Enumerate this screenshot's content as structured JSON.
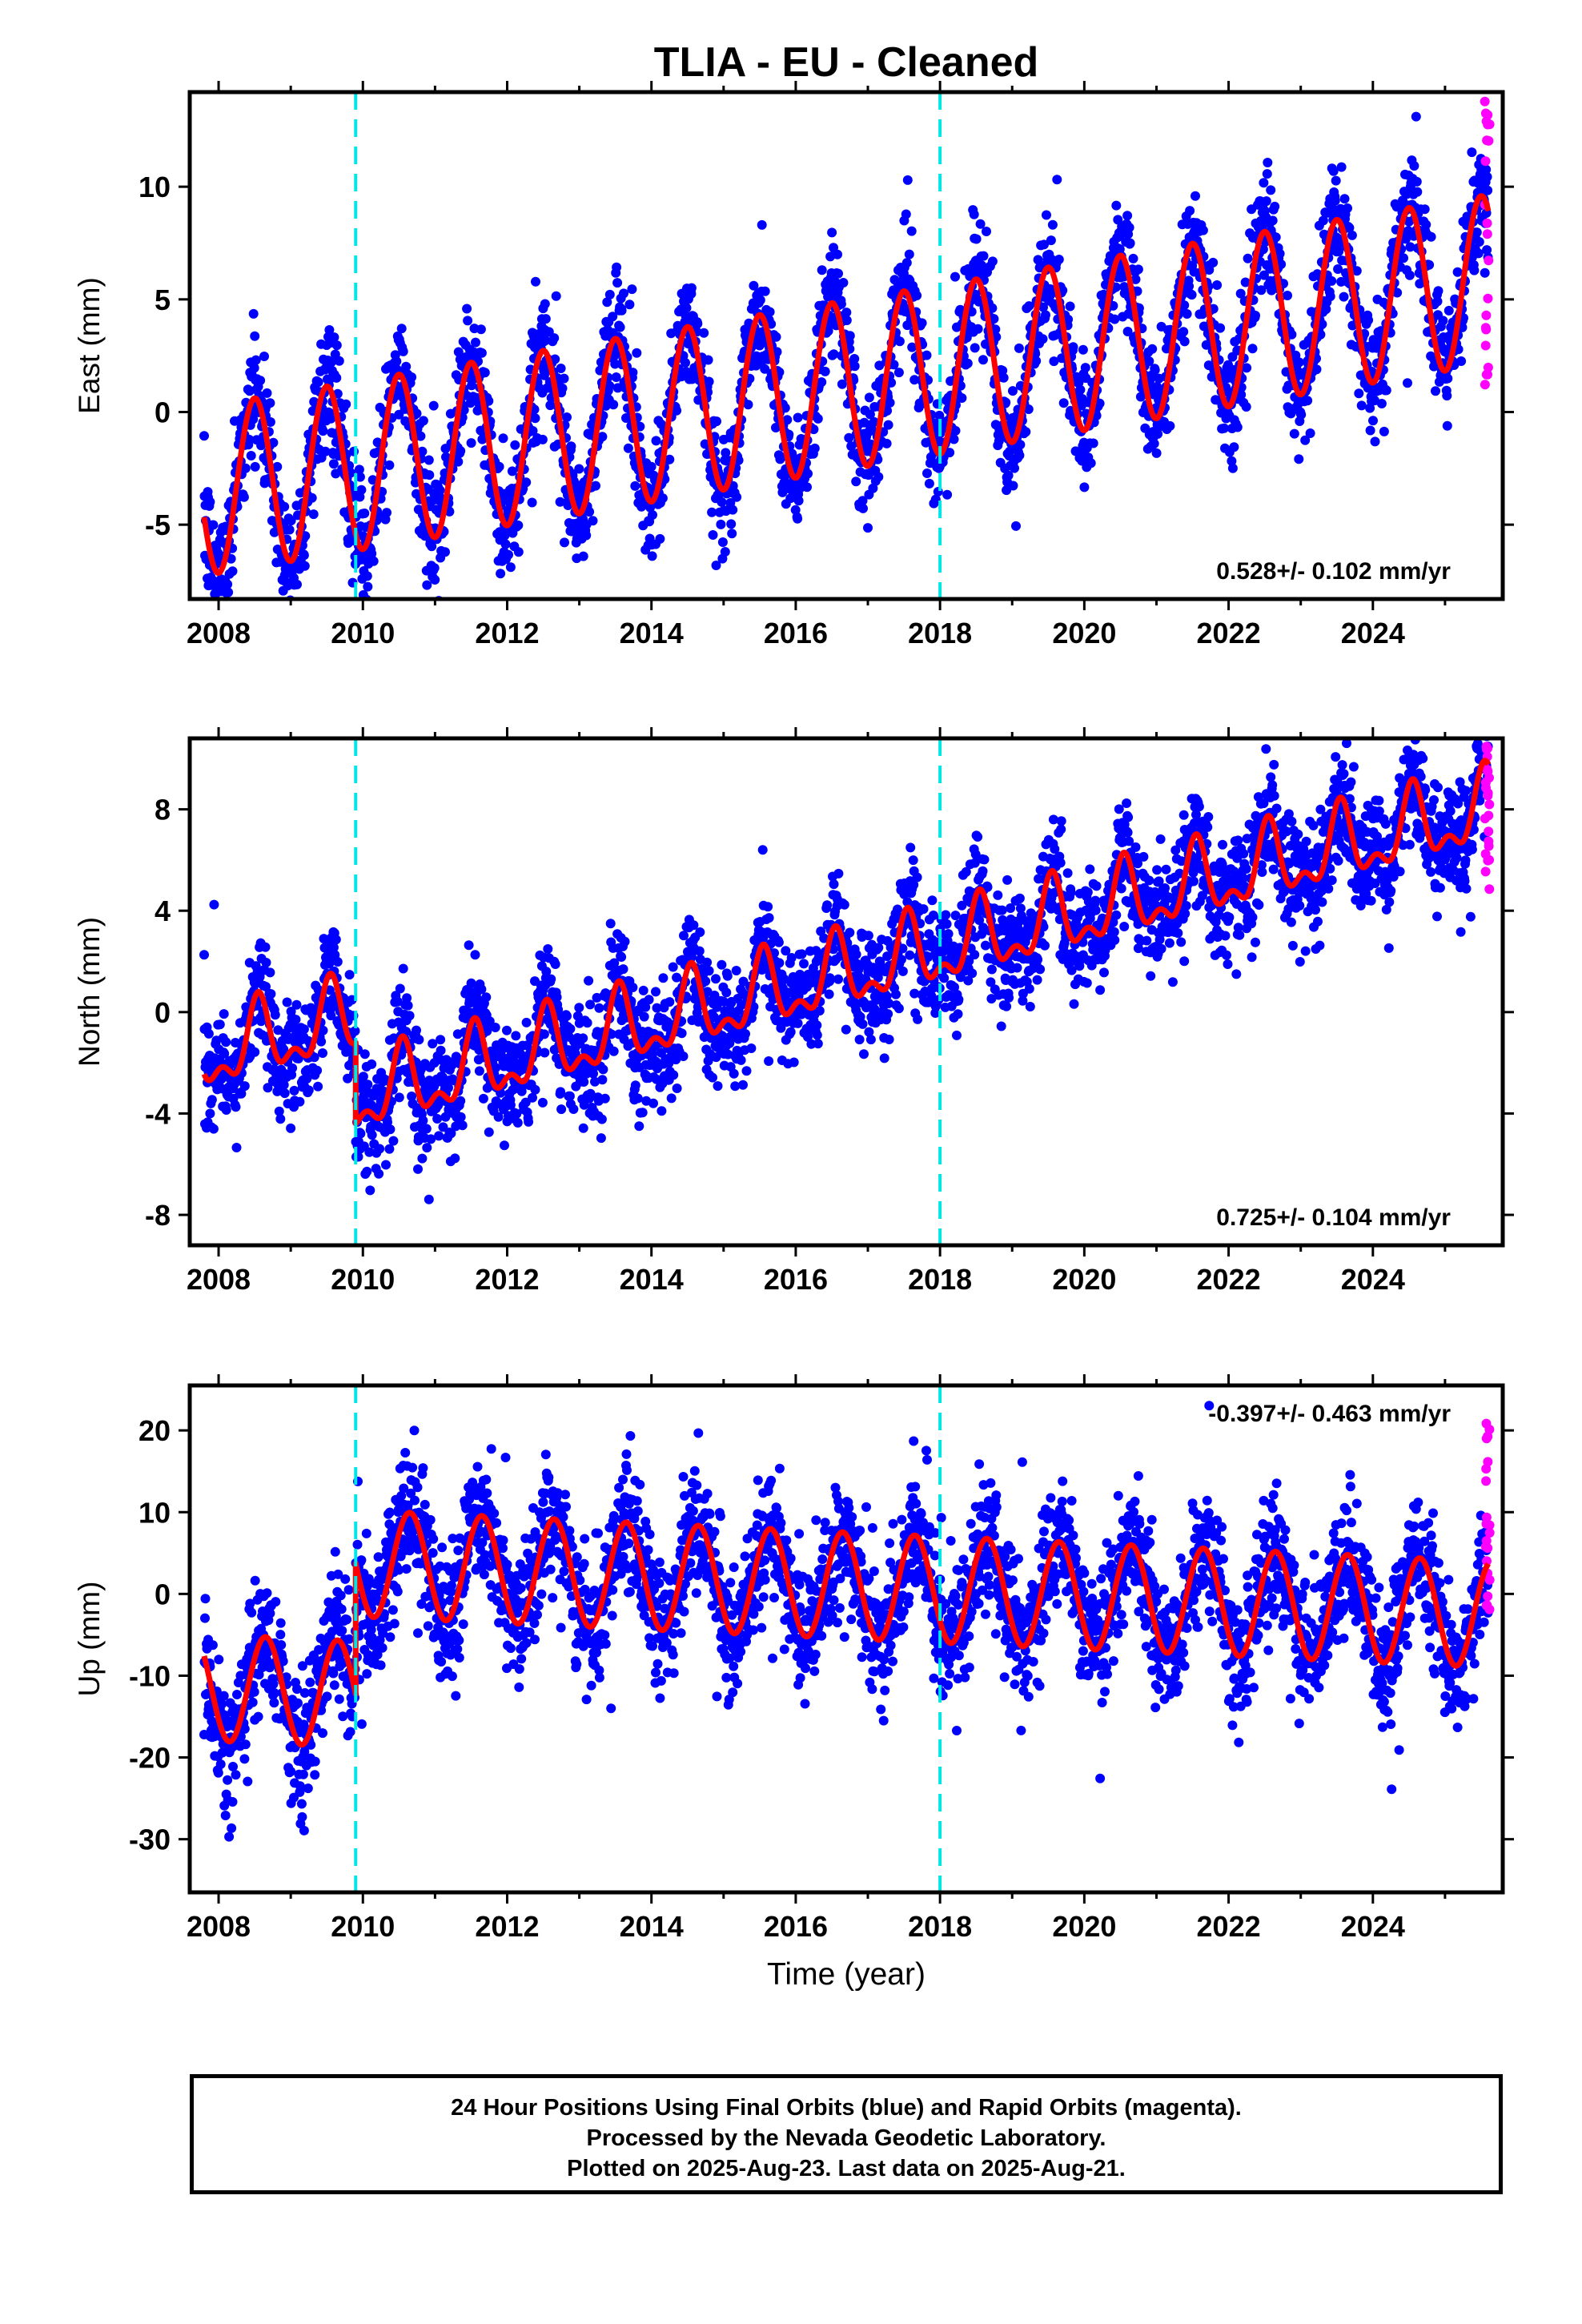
{
  "title": "TLIA  - EU - Cleaned",
  "colors": {
    "final_orbits": "#0000ff",
    "rapid_orbits": "#ff00ff",
    "model_fit": "#ff0000",
    "equipment_change": "#00e5e5",
    "frame": "#000000"
  },
  "x_axis": {
    "label": "Time (year)",
    "range": [
      2007.6,
      2025.8
    ],
    "ticks": [
      "2008",
      "2010",
      "2012",
      "2014",
      "2016",
      "2018",
      "2020",
      "2022",
      "2024"
    ]
  },
  "equipment_change_epochs": [
    2009.9,
    2018.0
  ],
  "chart_data": [
    {
      "type": "scatter",
      "ylabel": "East (mm)",
      "ylim": [
        -8.3,
        14.2
      ],
      "yticks": [
        "10",
        "5",
        "0",
        "-5"
      ],
      "rate_label": "0.528+/- 0.102 mm/yr",
      "rate_position": "bottom-right",
      "fit": {
        "start": 2007.8,
        "end": 2025.6,
        "offset_at_2008": -3.4,
        "trend_mm_per_yr": 0.528,
        "annual_amplitude": 3.75,
        "annual_peak_phase": 0.5,
        "semiannual_amplitude": 0.0,
        "step_at_2009_9": 0.0,
        "scatter_sd": 1.3
      },
      "rapid_orbits": {
        "start": 2025.55,
        "end": 2025.62,
        "y_range": [
          1.2,
          14.0
        ]
      }
    },
    {
      "type": "scatter",
      "ylabel": "North (mm)",
      "ylim": [
        -9.2,
        10.8
      ],
      "yticks": [
        "8",
        "4",
        "0",
        "-4",
        "-8"
      ],
      "rate_label": "0.725+/- 0.104 mm/yr",
      "rate_position": "bottom-right",
      "fit": {
        "start": 2007.8,
        "end": 2025.6,
        "offset_at_2008": -1.6,
        "trend_mm_per_yr": 0.725,
        "annual_amplitude": 1.3,
        "annual_peak_phase": 0.55,
        "semiannual_amplitude": 0.7,
        "step_at_2009_9": -3.2,
        "scatter_sd": 1.1
      },
      "rapid_orbits": {
        "start": 2025.55,
        "end": 2025.62,
        "y_range": [
          4.2,
          10.5
        ]
      }
    },
    {
      "type": "scatter",
      "ylabel": "Up (mm)",
      "ylim": [
        -36.5,
        25.5
      ],
      "yticks": [
        "20",
        "10",
        "0",
        "-10",
        "-20",
        "-30"
      ],
      "rate_label": "-0.397+/- 0.463 mm/yr",
      "rate_position": "top-right",
      "fit": {
        "start": 2007.8,
        "end": 2025.6,
        "offset_at_2008": -11.5,
        "trend_mm_per_yr": -0.397,
        "annual_amplitude": 6.5,
        "annual_peak_phase": 0.65,
        "semiannual_amplitude": 0.0,
        "step_at_2009_9": 16.0,
        "scatter_sd": 4.0
      },
      "rapid_orbits": {
        "start": 2025.55,
        "end": 2025.62,
        "y_range": [
          -2.0,
          22.0
        ]
      }
    }
  ],
  "footer": {
    "line1": "24 Hour Positions Using Final Orbits (blue) and Rapid Orbits (magenta).",
    "line2": "Processed by the Nevada Geodetic Laboratory.",
    "line3": "Plotted on 2025-Aug-23. Last data on 2025-Aug-21."
  }
}
